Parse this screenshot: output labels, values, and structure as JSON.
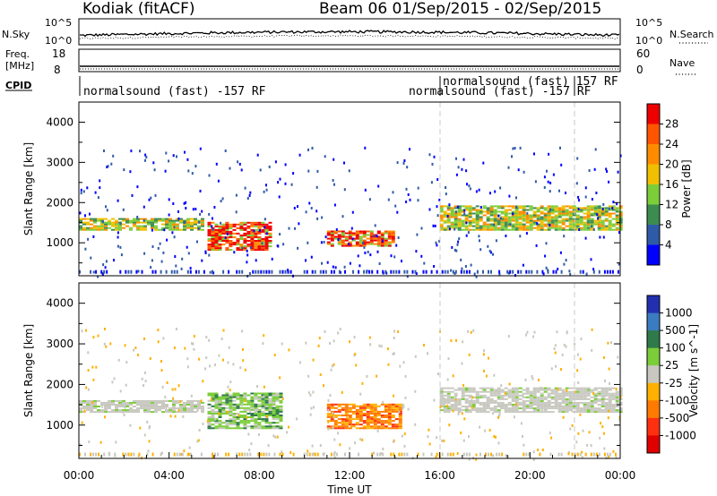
{
  "header": {
    "station": "Kodiak (fitACF)",
    "beam_range": "Beam 06  01/Sep/2015 - 02/Sep/2015"
  },
  "top_panels": {
    "nsky_label": "N.Sky",
    "nsky_ticks": [
      "10^5",
      "10^0"
    ],
    "nsearch_label": "N.Search",
    "nsearch_ticks": [
      "10^5",
      "10^0"
    ],
    "freq_label_1": "Freq.",
    "freq_label_2": "[MHz]",
    "freq_ticks": [
      "18",
      "8"
    ],
    "nave_label": "Nave",
    "nave_ticks": [
      "60",
      "0"
    ],
    "cpid_label": "CPID",
    "cpid_entries": [
      {
        "text": "normalsound (fast) -157 RF",
        "time": "00:00"
      },
      {
        "text": "normalsound (fast) 157 RF",
        "time": "16:00"
      },
      {
        "text": "normalsound (fast) -157 RF",
        "time": "16:00"
      }
    ]
  },
  "chart_data": [
    {
      "type": "heatmap",
      "quantity": "Power",
      "ylabel": "Slant Range [km]",
      "ylim": [
        180,
        4500
      ],
      "yticks": [
        "4000",
        "3000",
        "2000",
        "1000"
      ],
      "x_hours": [
        0,
        24
      ],
      "colorbar_label": "Power [dB]",
      "colorbar_ticks": [
        "28",
        "24",
        "20",
        "16",
        "12",
        "8",
        "4"
      ],
      "colorbar_colors": [
        "#ee0000",
        "#ff5500",
        "#ff8c00",
        "#f0c000",
        "#7ccd3a",
        "#3c8c50",
        "#2f5aa8",
        "#0000ff"
      ],
      "echo_bands": [
        {
          "t0": 0.0,
          "t1": 5.5,
          "r0": 1300,
          "r1": 1600,
          "dominant": "16-20 dB"
        },
        {
          "t0": 5.7,
          "t1": 8.5,
          "r0": 800,
          "r1": 1500,
          "dominant": "24-28 dB"
        },
        {
          "t0": 11.0,
          "t1": 14.0,
          "r0": 900,
          "r1": 1300,
          "dominant": "24-28 dB"
        },
        {
          "t0": 16.0,
          "t1": 24.0,
          "r0": 1300,
          "r1": 1900,
          "dominant": "12-20 dB"
        }
      ]
    },
    {
      "type": "heatmap",
      "quantity": "Velocity",
      "ylabel": "Slant Range [km]",
      "ylim": [
        180,
        4500
      ],
      "yticks": [
        "4000",
        "3000",
        "2000",
        "1000"
      ],
      "x_hours": [
        0,
        24
      ],
      "xticks": [
        "00:00",
        "04:00",
        "08:00",
        "12:00",
        "16:00",
        "20:00",
        "00:00"
      ],
      "xlabel": "Time UT",
      "colorbar_label": "Velocity [m s^-1]",
      "colorbar_ticks": [
        "1000",
        "500",
        "100",
        "25",
        "-25",
        "-100",
        "-500",
        "-1000"
      ],
      "colorbar_colors": [
        "#2230b0",
        "#3a7cc0",
        "#2f7a4a",
        "#7ccd3a",
        "#c8c8c0",
        "#ffb000",
        "#ff7a00",
        "#ff3010",
        "#e00000"
      ],
      "echo_bands": [
        {
          "t0": 0.0,
          "t1": 5.5,
          "r0": 1300,
          "r1": 1600,
          "dominant": "-25 to 25"
        },
        {
          "t0": 5.7,
          "t1": 9.0,
          "r0": 900,
          "r1": 1800,
          "dominant": "25 to 100"
        },
        {
          "t0": 11.0,
          "t1": 14.2,
          "r0": 900,
          "r1": 1500,
          "dominant": "-100 to -500"
        },
        {
          "t0": 16.0,
          "t1": 24.0,
          "r0": 1300,
          "r1": 1900,
          "dominant": "-25 to 25"
        }
      ]
    }
  ],
  "colors": {
    "axes": "#000000",
    "cpid_divider": "#c8c8c8"
  }
}
